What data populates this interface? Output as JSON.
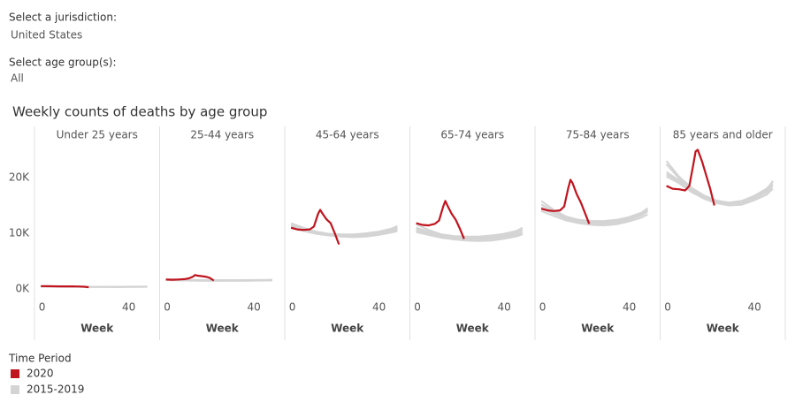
{
  "filters": [
    {
      "label": "Select a jurisdiction:",
      "value": "United States"
    },
    {
      "label": "Select age group(s):",
      "value": "All"
    }
  ],
  "title": "Weekly counts of deaths by age group",
  "legend": {
    "title": "Time Period",
    "items": [
      {
        "name": "2020",
        "color": "#c0141e"
      },
      {
        "name": "2015-2019",
        "color": "#d4d4d4"
      }
    ]
  },
  "chart_data": [
    {
      "type": "line",
      "title": "Under 25 years",
      "x_label": "Week",
      "xlim": [
        -2,
        58
      ],
      "xticks": [
        0,
        40
      ],
      "ylim": [
        -1750,
        29200
      ],
      "yticks": [
        {
          "value": 0,
          "label": "0K"
        },
        {
          "value": 10000,
          "label": "10K"
        },
        {
          "value": 20000,
          "label": "20K"
        }
      ],
      "series": [
        {
          "name": "2015-2019",
          "color": "#d4d4d4",
          "x": [
            1,
            7,
            13,
            19,
            25,
            31,
            37,
            43,
            49,
            52
          ],
          "values": [
            450,
            430,
            410,
            400,
            390,
            390,
            380,
            390,
            400,
            410
          ]
        },
        {
          "name": "2015-2019",
          "color": "#d4d4d4",
          "x": [
            1,
            7,
            13,
            19,
            25,
            31,
            37,
            43,
            49,
            52
          ],
          "values": [
            420,
            400,
            390,
            380,
            370,
            370,
            360,
            370,
            380,
            390
          ]
        },
        {
          "name": "2015-2019",
          "color": "#d4d4d4",
          "x": [
            1,
            7,
            13,
            19,
            25,
            31,
            37,
            43,
            49,
            52
          ],
          "values": [
            400,
            390,
            380,
            370,
            360,
            360,
            355,
            360,
            370,
            380
          ]
        },
        {
          "name": "2015-2019",
          "color": "#d4d4d4",
          "x": [
            1,
            7,
            13,
            19,
            25,
            31,
            37,
            43,
            49,
            52
          ],
          "values": [
            440,
            420,
            400,
            390,
            380,
            380,
            375,
            385,
            395,
            405
          ]
        },
        {
          "name": "2015-2019",
          "color": "#d4d4d4",
          "x": [
            1,
            7,
            13,
            19,
            25,
            31,
            37,
            43,
            49,
            52
          ],
          "values": [
            460,
            440,
            420,
            410,
            400,
            400,
            395,
            405,
            415,
            425
          ]
        },
        {
          "name": "2020",
          "color": "#c0141e",
          "x": [
            1,
            4,
            7,
            10,
            12,
            14,
            15,
            16,
            18,
            20,
            22,
            24
          ],
          "values": [
            500,
            480,
            470,
            460,
            460,
            450,
            450,
            450,
            440,
            430,
            400,
            300
          ]
        }
      ]
    },
    {
      "type": "line",
      "title": "25-44 years",
      "x_label": "Week",
      "xlim": [
        -2,
        58
      ],
      "xticks": [
        0,
        40
      ],
      "series": [
        {
          "name": "2015-2019",
          "color": "#d4d4d4",
          "x": [
            1,
            7,
            13,
            19,
            25,
            31,
            37,
            43,
            49,
            52
          ],
          "values": [
            1650,
            1600,
            1550,
            1520,
            1500,
            1510,
            1520,
            1530,
            1550,
            1580
          ]
        },
        {
          "name": "2015-2019",
          "color": "#d4d4d4",
          "x": [
            1,
            7,
            13,
            19,
            25,
            31,
            37,
            43,
            49,
            52
          ],
          "values": [
            1600,
            1550,
            1500,
            1480,
            1470,
            1480,
            1490,
            1500,
            1520,
            1550
          ]
        },
        {
          "name": "2015-2019",
          "color": "#d4d4d4",
          "x": [
            1,
            7,
            13,
            19,
            25,
            31,
            37,
            43,
            49,
            52
          ],
          "values": [
            1580,
            1530,
            1480,
            1460,
            1450,
            1460,
            1470,
            1480,
            1500,
            1530
          ]
        },
        {
          "name": "2015-2019",
          "color": "#d4d4d4",
          "x": [
            1,
            7,
            13,
            19,
            25,
            31,
            37,
            43,
            49,
            52
          ],
          "values": [
            1700,
            1640,
            1580,
            1550,
            1530,
            1540,
            1550,
            1560,
            1580,
            1610
          ]
        },
        {
          "name": "2015-2019",
          "color": "#d4d4d4",
          "x": [
            1,
            7,
            13,
            19,
            25,
            31,
            37,
            43,
            49,
            52
          ],
          "values": [
            1750,
            1680,
            1620,
            1590,
            1570,
            1580,
            1590,
            1600,
            1620,
            1650
          ]
        },
        {
          "name": "2020",
          "color": "#c0141e",
          "x": [
            1,
            4,
            7,
            10,
            12,
            14,
            15,
            16,
            18,
            20,
            22,
            24
          ],
          "values": [
            1700,
            1650,
            1700,
            1750,
            1900,
            2200,
            2500,
            2400,
            2300,
            2200,
            2000,
            1500
          ]
        }
      ]
    },
    {
      "type": "line",
      "title": "45-64 years",
      "x_label": "Week",
      "xlim": [
        -2,
        58
      ],
      "xticks": [
        0,
        40
      ],
      "series": [
        {
          "name": "2015-2019",
          "color": "#d4d4d4",
          "x": [
            1,
            7,
            13,
            19,
            25,
            31,
            37,
            43,
            49,
            52
          ],
          "values": [
            11800,
            11000,
            10300,
            9900,
            9700,
            9600,
            9700,
            10000,
            10500,
            10900
          ]
        },
        {
          "name": "2015-2019",
          "color": "#d4d4d4",
          "x": [
            1,
            7,
            13,
            19,
            25,
            31,
            37,
            43,
            49,
            52
          ],
          "values": [
            11200,
            10600,
            10100,
            9800,
            9600,
            9500,
            9600,
            9900,
            10300,
            10600
          ]
        },
        {
          "name": "2015-2019",
          "color": "#d4d4d4",
          "x": [
            1,
            7,
            13,
            19,
            25,
            31,
            37,
            43,
            49,
            52
          ],
          "values": [
            10900,
            10400,
            9900,
            9600,
            9400,
            9300,
            9400,
            9700,
            10100,
            10400
          ]
        },
        {
          "name": "2015-2019",
          "color": "#d4d4d4",
          "x": [
            1,
            7,
            13,
            19,
            25,
            31,
            37,
            43,
            49,
            52
          ],
          "values": [
            11500,
            10800,
            10200,
            9900,
            9700,
            9600,
            9800,
            10100,
            10600,
            11000
          ]
        },
        {
          "name": "2015-2019",
          "color": "#d4d4d4",
          "x": [
            1,
            7,
            13,
            19,
            25,
            31,
            37,
            43,
            49,
            52
          ],
          "values": [
            11300,
            10700,
            10200,
            9900,
            9800,
            9800,
            10000,
            10300,
            10800,
            11300
          ]
        },
        {
          "name": "2020",
          "color": "#c0141e",
          "x": [
            1,
            4,
            7,
            10,
            12,
            14,
            15,
            16,
            18,
            20,
            22,
            24
          ],
          "values": [
            11000,
            10700,
            10600,
            10700,
            11200,
            13500,
            14200,
            13600,
            12500,
            11800,
            10000,
            8000
          ]
        }
      ]
    },
    {
      "type": "line",
      "title": "65-74 years",
      "x_label": "Week",
      "xlim": [
        -2,
        58
      ],
      "xticks": [
        0,
        40
      ],
      "series": [
        {
          "name": "2015-2019",
          "color": "#d4d4d4",
          "x": [
            1,
            7,
            13,
            19,
            25,
            31,
            37,
            43,
            49,
            52
          ],
          "values": [
            11600,
            10600,
            9800,
            9400,
            9200,
            9100,
            9200,
            9500,
            10000,
            10500
          ]
        },
        {
          "name": "2015-2019",
          "color": "#d4d4d4",
          "x": [
            1,
            7,
            13,
            19,
            25,
            31,
            37,
            43,
            49,
            52
          ],
          "values": [
            10500,
            10000,
            9500,
            9200,
            9000,
            8900,
            9000,
            9300,
            9700,
            10100
          ]
        },
        {
          "name": "2015-2019",
          "color": "#d4d4d4",
          "x": [
            1,
            7,
            13,
            19,
            25,
            31,
            37,
            43,
            49,
            52
          ],
          "values": [
            10200,
            9700,
            9200,
            8900,
            8700,
            8600,
            8700,
            9000,
            9400,
            9800
          ]
        },
        {
          "name": "2015-2019",
          "color": "#d4d4d4",
          "x": [
            1,
            7,
            13,
            19,
            25,
            31,
            37,
            43,
            49,
            52
          ],
          "values": [
            11000,
            10300,
            9700,
            9400,
            9200,
            9100,
            9300,
            9600,
            10100,
            10600
          ]
        },
        {
          "name": "2015-2019",
          "color": "#d4d4d4",
          "x": [
            1,
            7,
            13,
            19,
            25,
            31,
            37,
            43,
            49,
            52
          ],
          "values": [
            10800,
            10300,
            9800,
            9500,
            9400,
            9400,
            9600,
            9900,
            10400,
            11000
          ]
        },
        {
          "name": "2020",
          "color": "#c0141e",
          "x": [
            1,
            4,
            7,
            10,
            12,
            14,
            15,
            16,
            18,
            20,
            22,
            24
          ],
          "values": [
            11800,
            11500,
            11400,
            11700,
            12300,
            14800,
            15800,
            15000,
            13500,
            12400,
            10800,
            9000
          ]
        }
      ]
    },
    {
      "type": "line",
      "title": "75-84 years",
      "x_label": "Week",
      "xlim": [
        -2,
        58
      ],
      "xticks": [
        0,
        40
      ],
      "series": [
        {
          "name": "2015-2019",
          "color": "#d4d4d4",
          "x": [
            1,
            7,
            13,
            19,
            25,
            31,
            37,
            43,
            49,
            52
          ],
          "values": [
            15800,
            14200,
            13000,
            12400,
            12100,
            12000,
            12200,
            12700,
            13500,
            14200
          ]
        },
        {
          "name": "2015-2019",
          "color": "#d4d4d4",
          "x": [
            1,
            7,
            13,
            19,
            25,
            31,
            37,
            43,
            49,
            52
          ],
          "values": [
            14500,
            13500,
            12600,
            12100,
            11800,
            11700,
            11900,
            12400,
            13200,
            13900
          ]
        },
        {
          "name": "2015-2019",
          "color": "#d4d4d4",
          "x": [
            1,
            7,
            13,
            19,
            25,
            31,
            37,
            43,
            49,
            52
          ],
          "values": [
            14000,
            13100,
            12300,
            11800,
            11500,
            11400,
            11600,
            12100,
            12800,
            13400
          ]
        },
        {
          "name": "2015-2019",
          "color": "#d4d4d4",
          "x": [
            1,
            7,
            13,
            19,
            25,
            31,
            37,
            43,
            49,
            52
          ],
          "values": [
            15200,
            13900,
            12900,
            12300,
            12000,
            11900,
            12100,
            12600,
            13400,
            14100
          ]
        },
        {
          "name": "2015-2019",
          "color": "#d4d4d4",
          "x": [
            1,
            7,
            13,
            19,
            25,
            31,
            37,
            43,
            49,
            52
          ],
          "values": [
            14700,
            13800,
            12900,
            12400,
            12200,
            12200,
            12400,
            12900,
            13700,
            14500
          ]
        },
        {
          "name": "2020",
          "color": "#c0141e",
          "x": [
            1,
            4,
            7,
            10,
            12,
            14,
            15,
            16,
            18,
            20,
            22,
            24
          ],
          "values": [
            14400,
            14100,
            14000,
            14100,
            14800,
            18200,
            19600,
            19000,
            17000,
            15500,
            13600,
            11700
          ]
        }
      ]
    },
    {
      "type": "line",
      "title": "85 years and older",
      "x_label": "Week",
      "xlim": [
        -2,
        58
      ],
      "xticks": [
        0,
        40
      ],
      "series": [
        {
          "name": "2015-2019",
          "color": "#d4d4d4",
          "x": [
            1,
            7,
            13,
            19,
            25,
            31,
            37,
            43,
            49,
            52
          ],
          "values": [
            23000,
            20200,
            18200,
            16800,
            15900,
            15500,
            15600,
            16400,
            17600,
            18800
          ]
        },
        {
          "name": "2015-2019",
          "color": "#d4d4d4",
          "x": [
            1,
            7,
            13,
            19,
            25,
            31,
            37,
            43,
            49,
            52
          ],
          "values": [
            21000,
            19500,
            17800,
            16500,
            15700,
            15300,
            15400,
            16200,
            17300,
            18500
          ]
        },
        {
          "name": "2015-2019",
          "color": "#d4d4d4",
          "x": [
            1,
            7,
            13,
            19,
            25,
            31,
            37,
            43,
            49,
            52
          ],
          "values": [
            20200,
            19000,
            17400,
            16200,
            15400,
            15000,
            15100,
            15900,
            16900,
            18000
          ]
        },
        {
          "name": "2015-2019",
          "color": "#d4d4d4",
          "x": [
            1,
            7,
            13,
            19,
            25,
            31,
            37,
            43,
            49,
            52
          ],
          "values": [
            22400,
            19900,
            18000,
            16700,
            15800,
            15400,
            15600,
            16500,
            17700,
            19400
          ]
        },
        {
          "name": "2015-2019",
          "color": "#d4d4d4",
          "x": [
            1,
            7,
            13,
            19,
            25,
            31,
            37,
            43,
            49,
            52
          ],
          "values": [
            20600,
            19300,
            17700,
            16500,
            15800,
            15500,
            15800,
            16700,
            18000,
            19200
          ]
        },
        {
          "name": "2020",
          "color": "#c0141e",
          "x": [
            1,
            4,
            7,
            10,
            12,
            14,
            15,
            16,
            18,
            20,
            22,
            24
          ],
          "values": [
            18500,
            18000,
            17900,
            17700,
            18500,
            22500,
            24700,
            25000,
            23000,
            20500,
            18000,
            15000
          ]
        }
      ]
    }
  ]
}
